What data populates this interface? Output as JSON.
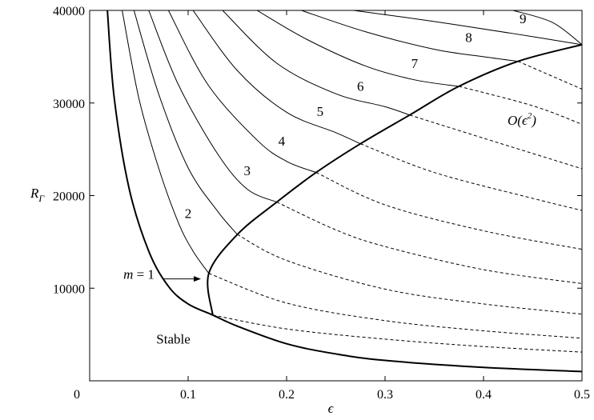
{
  "chart_data": {
    "type": "line",
    "xlabel": "ϵ",
    "ylabel": "R_Γ",
    "xlim": [
      0,
      0.5
    ],
    "ylim": [
      0,
      40000
    ],
    "x_ticks": [
      {
        "value": 0,
        "label": "0"
      },
      {
        "value": 0.1,
        "label": "0.1"
      },
      {
        "value": 0.2,
        "label": "0.2"
      },
      {
        "value": 0.3,
        "label": "0.3"
      },
      {
        "value": 0.4,
        "label": "0.4"
      },
      {
        "value": 0.5,
        "label": "0.5"
      }
    ],
    "y_ticks": [
      {
        "value": 10000,
        "label": "10000"
      },
      {
        "value": 20000,
        "label": "20000"
      },
      {
        "value": 30000,
        "label": "30000"
      },
      {
        "value": 40000,
        "label": "40000"
      }
    ],
    "series": [
      {
        "style": "bold",
        "points": [
          [
            0.018,
            40000
          ],
          [
            0.025,
            30500
          ],
          [
            0.04,
            20800
          ],
          [
            0.06,
            14000
          ],
          [
            0.08,
            10200
          ],
          [
            0.1,
            8300
          ],
          [
            0.125,
            7100
          ],
          [
            0.15,
            5900
          ],
          [
            0.2,
            4000
          ],
          [
            0.25,
            2900
          ],
          [
            0.3,
            2200
          ],
          [
            0.4,
            1450
          ],
          [
            0.5,
            1000
          ]
        ]
      },
      {
        "style": "bold",
        "points": [
          [
            0.125,
            7100
          ],
          [
            0.121,
            11600
          ],
          [
            0.15,
            15800
          ],
          [
            0.19,
            19300
          ],
          [
            0.23,
            22500
          ],
          [
            0.275,
            25600
          ],
          [
            0.325,
            28700
          ],
          [
            0.375,
            31800
          ],
          [
            0.435,
            34500
          ],
          [
            0.5,
            36300
          ]
        ]
      },
      {
        "style": "solid",
        "points": [
          [
            0.033,
            40000
          ],
          [
            0.05,
            30500
          ],
          [
            0.07,
            23000
          ],
          [
            0.09,
            17100
          ],
          [
            0.105,
            14000
          ],
          [
            0.121,
            11600
          ]
        ]
      },
      {
        "style": "dashed",
        "points": [
          [
            0.125,
            7100
          ],
          [
            0.2,
            5600
          ],
          [
            0.3,
            4500
          ],
          [
            0.4,
            3700
          ],
          [
            0.5,
            3100
          ]
        ]
      },
      {
        "style": "solid",
        "points": [
          [
            0.045,
            40000
          ],
          [
            0.07,
            31000
          ],
          [
            0.1,
            23000
          ],
          [
            0.13,
            18300
          ],
          [
            0.15,
            15800
          ]
        ]
      },
      {
        "style": "dashed",
        "points": [
          [
            0.121,
            11600
          ],
          [
            0.2,
            8400
          ],
          [
            0.3,
            6500
          ],
          [
            0.4,
            5400
          ],
          [
            0.5,
            4600
          ]
        ]
      },
      {
        "style": "solid",
        "points": [
          [
            0.06,
            40000
          ],
          [
            0.09,
            32000
          ],
          [
            0.13,
            24500
          ],
          [
            0.16,
            20700
          ],
          [
            0.19,
            19300
          ]
        ]
      },
      {
        "style": "dashed",
        "points": [
          [
            0.15,
            15800
          ],
          [
            0.2,
            13000
          ],
          [
            0.3,
            9900
          ],
          [
            0.4,
            8300
          ],
          [
            0.5,
            7200
          ]
        ]
      },
      {
        "style": "solid",
        "points": [
          [
            0.08,
            40000
          ],
          [
            0.12,
            32000
          ],
          [
            0.17,
            26000
          ],
          [
            0.2,
            23700
          ],
          [
            0.23,
            22500
          ]
        ]
      },
      {
        "style": "dashed",
        "points": [
          [
            0.19,
            19300
          ],
          [
            0.25,
            16300
          ],
          [
            0.3,
            14500
          ],
          [
            0.4,
            12000
          ],
          [
            0.5,
            10500
          ]
        ]
      },
      {
        "style": "solid",
        "points": [
          [
            0.105,
            40000
          ],
          [
            0.15,
            33500
          ],
          [
            0.2,
            29000
          ],
          [
            0.25,
            26800
          ],
          [
            0.275,
            25600
          ]
        ]
      },
      {
        "style": "dashed",
        "points": [
          [
            0.23,
            22500
          ],
          [
            0.3,
            19000
          ],
          [
            0.4,
            16200
          ],
          [
            0.5,
            14200
          ]
        ]
      },
      {
        "style": "solid",
        "points": [
          [
            0.135,
            40000
          ],
          [
            0.19,
            34300
          ],
          [
            0.25,
            31000
          ],
          [
            0.3,
            29600
          ],
          [
            0.325,
            28700
          ]
        ]
      },
      {
        "style": "dashed",
        "points": [
          [
            0.275,
            25600
          ],
          [
            0.35,
            22500
          ],
          [
            0.45,
            19700
          ],
          [
            0.5,
            18400
          ]
        ]
      },
      {
        "style": "solid",
        "points": [
          [
            0.17,
            40000
          ],
          [
            0.22,
            36900
          ],
          [
            0.28,
            34000
          ],
          [
            0.33,
            32500
          ],
          [
            0.375,
            31800
          ]
        ]
      },
      {
        "style": "dashed",
        "points": [
          [
            0.325,
            28700
          ],
          [
            0.4,
            26200
          ],
          [
            0.5,
            22900
          ]
        ]
      },
      {
        "style": "solid",
        "points": [
          [
            0.215,
            40000
          ],
          [
            0.28,
            37700
          ],
          [
            0.35,
            35800
          ],
          [
            0.4,
            35000
          ],
          [
            0.435,
            34500
          ]
        ]
      },
      {
        "style": "dashed",
        "points": [
          [
            0.375,
            31800
          ],
          [
            0.45,
            29700
          ],
          [
            0.5,
            27700
          ]
        ]
      },
      {
        "style": "solid",
        "points": [
          [
            0.268,
            40000
          ],
          [
            0.35,
            38800
          ],
          [
            0.43,
            37500
          ],
          [
            0.5,
            36300
          ]
        ]
      },
      {
        "style": "dashed",
        "points": [
          [
            0.435,
            34500
          ],
          [
            0.5,
            31500
          ]
        ]
      },
      {
        "style": "solid",
        "points": [
          [
            0.43,
            40000
          ],
          [
            0.47,
            38700
          ],
          [
            0.5,
            36300
          ]
        ]
      }
    ],
    "labels": [
      {
        "text": "2",
        "x": 0.1,
        "y": 17600
      },
      {
        "text": "3",
        "x": 0.16,
        "y": 22200
      },
      {
        "text": "4",
        "x": 0.195,
        "y": 25400
      },
      {
        "text": "5",
        "x": 0.234,
        "y": 28600
      },
      {
        "text": "6",
        "x": 0.275,
        "y": 31300
      },
      {
        "text": "7",
        "x": 0.33,
        "y": 33800
      },
      {
        "text": "8",
        "x": 0.385,
        "y": 36600
      },
      {
        "text": "9",
        "x": 0.44,
        "y": 38600
      },
      {
        "text": "m = 1",
        "x": 0.05,
        "y": 11000
      },
      {
        "text": "Stable",
        "x": 0.085,
        "y": 4000
      }
    ],
    "annotation_on": "O(ϵ²)",
    "arrow": {
      "from": [
        0.075,
        11000
      ],
      "to": [
        0.113,
        11000
      ]
    }
  }
}
